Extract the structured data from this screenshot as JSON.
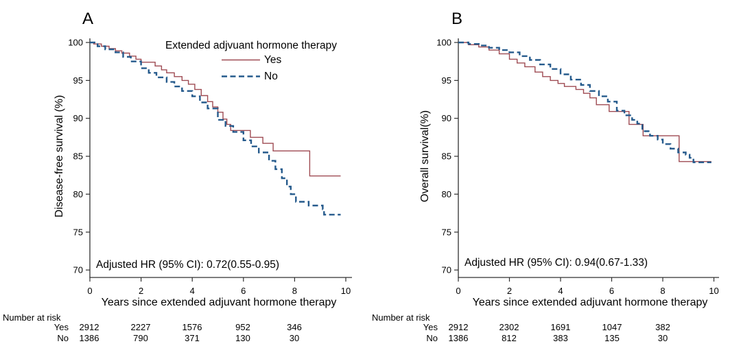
{
  "colors": {
    "yes": "#9e4a52",
    "no": "#255a8c",
    "axis": "#303030",
    "text": "#000000",
    "background": "#ffffff"
  },
  "panels": [
    {
      "letter": "A",
      "ylabel": "Disease-free survival (%)",
      "xlabel": "Years since extended adjuvant hormone therapy",
      "annotation": "Adjusted HR (95% CI): 0.72(0.55-0.95)",
      "legend": {
        "title": "Extended adjvuant hormone therapy",
        "items": [
          {
            "label": "Yes",
            "style": "solid"
          },
          {
            "label": "No",
            "style": "dashed"
          }
        ]
      },
      "risk": {
        "title": "Number at risk",
        "rows": [
          {
            "label": "Yes",
            "values": [
              "2912",
              "2227",
              "1576",
              "952",
              "346"
            ]
          },
          {
            "label": "No",
            "values": [
              "1386",
              "790",
              "371",
              "130",
              "30"
            ]
          }
        ]
      }
    },
    {
      "letter": "B",
      "ylabel": "Overall survival(%)",
      "xlabel": "Years since extended adjuvant hormone therapy",
      "annotation": "Adjusted HR (95% CI): 0.94(0.67-1.33)",
      "risk": {
        "title": "Number at risk",
        "rows": [
          {
            "label": "Yes",
            "values": [
              "2912",
              "2302",
              "1691",
              "1047",
              "382"
            ]
          },
          {
            "label": "No",
            "values": [
              "1386",
              "812",
              "383",
              "135",
              "30"
            ]
          }
        ]
      }
    }
  ],
  "chart_data": [
    {
      "type": "line",
      "subtype": "kaplan_meier_step",
      "panel": "A",
      "xlabel": "Years since extended adjuvant hormone therapy",
      "ylabel": "Disease-free survival (%)",
      "xlim": [
        0,
        10
      ],
      "ylim": [
        70,
        100
      ],
      "xticks": [
        0,
        2,
        4,
        6,
        8,
        10
      ],
      "yticks": [
        100,
        95,
        90,
        85,
        80,
        75,
        70
      ],
      "grid": false,
      "legend_position": "top-inside",
      "legend_title": "Extended adjvuant hormone therapy",
      "annotation": "Adjusted HR (95% CI): 0.72(0.55-0.95)",
      "series": [
        {
          "name": "Yes",
          "style": "solid",
          "color": "#9e4a52",
          "points": [
            [
              0,
              100
            ],
            [
              0.15,
              99.8
            ],
            [
              0.45,
              99.5
            ],
            [
              0.75,
              99.2
            ],
            [
              1.0,
              98.9
            ],
            [
              1.25,
              98.6
            ],
            [
              1.55,
              98.2
            ],
            [
              1.8,
              97.8
            ],
            [
              2.0,
              97.4
            ],
            [
              2.55,
              96.9
            ],
            [
              2.8,
              96.4
            ],
            [
              3.0,
              96.0
            ],
            [
              3.3,
              95.5
            ],
            [
              3.6,
              95.0
            ],
            [
              3.85,
              94.5
            ],
            [
              4.1,
              93.8
            ],
            [
              4.35,
              93.0
            ],
            [
              4.6,
              92.2
            ],
            [
              4.8,
              91.5
            ],
            [
              5.0,
              90.8
            ],
            [
              5.2,
              89.9
            ],
            [
              5.35,
              89.2
            ],
            [
              5.5,
              88.4
            ],
            [
              6.27,
              87.5
            ],
            [
              6.76,
              86.7
            ],
            [
              7.16,
              85.7
            ],
            [
              8.59,
              82.4
            ],
            [
              9.8,
              82.4
            ]
          ]
        },
        {
          "name": "No",
          "style": "dashed",
          "color": "#255a8c",
          "points": [
            [
              0,
              100
            ],
            [
              0.3,
              99.5
            ],
            [
              0.6,
              99.1
            ],
            [
              1.0,
              98.7
            ],
            [
              1.3,
              98.1
            ],
            [
              1.6,
              97.5
            ],
            [
              2.0,
              96.6
            ],
            [
              2.3,
              96.0
            ],
            [
              2.6,
              95.4
            ],
            [
              3.0,
              94.8
            ],
            [
              3.3,
              94.2
            ],
            [
              3.6,
              93.6
            ],
            [
              4.0,
              92.9
            ],
            [
              4.3,
              92.1
            ],
            [
              4.6,
              91.3
            ],
            [
              5.0,
              89.8
            ],
            [
              5.3,
              89.0
            ],
            [
              5.6,
              88.2
            ],
            [
              6.0,
              87.1
            ],
            [
              6.3,
              86.3
            ],
            [
              6.6,
              85.5
            ],
            [
              7.0,
              84.4
            ],
            [
              7.25,
              83.3
            ],
            [
              7.5,
              82.1
            ],
            [
              7.7,
              81.0
            ],
            [
              7.85,
              80.0
            ],
            [
              8.05,
              79.0
            ],
            [
              8.55,
              78.5
            ],
            [
              9.1,
              78.0
            ],
            [
              9.15,
              77.3
            ],
            [
              9.8,
              77.3
            ]
          ]
        }
      ],
      "number_at_risk": {
        "times": [
          0,
          2,
          4,
          6,
          8
        ],
        "rows": [
          {
            "name": "Yes",
            "values": [
              2912,
              2227,
              1576,
              952,
              346
            ]
          },
          {
            "name": "No",
            "values": [
              1386,
              790,
              371,
              130,
              30
            ]
          }
        ]
      }
    },
    {
      "type": "line",
      "subtype": "kaplan_meier_step",
      "panel": "B",
      "xlabel": "Years since extended adjuvant hormone therapy",
      "ylabel": "Overall survival(%)",
      "xlim": [
        0,
        10
      ],
      "ylim": [
        70,
        100
      ],
      "xticks": [
        0,
        2,
        4,
        6,
        8,
        10
      ],
      "yticks": [
        100,
        95,
        90,
        85,
        80,
        75,
        70
      ],
      "grid": false,
      "legend_position": "none",
      "annotation": "Adjusted HR (95% CI): 0.94(0.67-1.33)",
      "series": [
        {
          "name": "Yes",
          "style": "solid",
          "color": "#9e4a52",
          "points": [
            [
              0,
              100
            ],
            [
              0.4,
              99.7
            ],
            [
              0.8,
              99.4
            ],
            [
              1.2,
              99.0
            ],
            [
              1.6,
              98.5
            ],
            [
              2.0,
              97.8
            ],
            [
              2.3,
              97.3
            ],
            [
              2.6,
              96.8
            ],
            [
              3.0,
              96.1
            ],
            [
              3.3,
              95.5
            ],
            [
              3.6,
              95.0
            ],
            [
              3.9,
              94.6
            ],
            [
              4.15,
              94.2
            ],
            [
              4.6,
              93.8
            ],
            [
              4.9,
              93.3
            ],
            [
              5.15,
              92.7
            ],
            [
              5.4,
              91.8
            ],
            [
              5.9,
              90.9
            ],
            [
              6.68,
              89.2
            ],
            [
              7.23,
              87.7
            ],
            [
              8.64,
              84.3
            ],
            [
              9.9,
              84.3
            ]
          ]
        },
        {
          "name": "No",
          "style": "dashed",
          "color": "#255a8c",
          "points": [
            [
              0,
              100
            ],
            [
              0.4,
              99.8
            ],
            [
              0.8,
              99.6
            ],
            [
              1.2,
              99.3
            ],
            [
              1.6,
              99.0
            ],
            [
              2.0,
              98.7
            ],
            [
              2.4,
              98.2
            ],
            [
              2.8,
              97.7
            ],
            [
              3.2,
              97.1
            ],
            [
              3.6,
              96.5
            ],
            [
              4.0,
              95.8
            ],
            [
              4.4,
              95.1
            ],
            [
              4.8,
              94.4
            ],
            [
              5.15,
              93.6
            ],
            [
              5.5,
              92.9
            ],
            [
              5.85,
              92.2
            ],
            [
              6.2,
              91.0
            ],
            [
              6.5,
              90.4
            ],
            [
              6.8,
              89.8
            ],
            [
              7.0,
              89.3
            ],
            [
              7.2,
              88.3
            ],
            [
              7.5,
              87.7
            ],
            [
              7.8,
              87.2
            ],
            [
              8.0,
              86.6
            ],
            [
              8.3,
              86.0
            ],
            [
              8.6,
              85.5
            ],
            [
              8.9,
              85.2
            ],
            [
              9.05,
              84.8
            ],
            [
              9.2,
              84.2
            ],
            [
              9.9,
              84.2
            ]
          ]
        }
      ],
      "number_at_risk": {
        "times": [
          0,
          2,
          4,
          6,
          8
        ],
        "rows": [
          {
            "name": "Yes",
            "values": [
              2912,
              2302,
              1691,
              1047,
              382
            ]
          },
          {
            "name": "No",
            "values": [
              1386,
              812,
              383,
              135,
              30
            ]
          }
        ]
      }
    }
  ]
}
